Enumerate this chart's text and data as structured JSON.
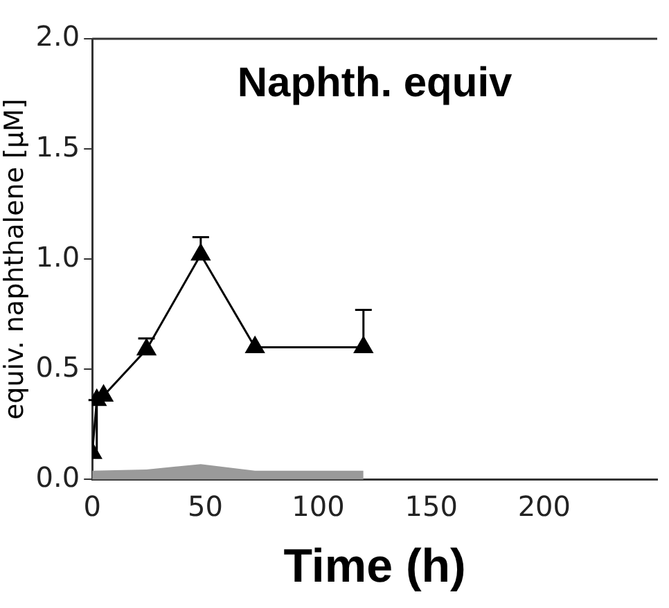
{
  "chart_data": {
    "type": "line",
    "title": "Naphth. equiv",
    "xlabel": "Time (h)",
    "ylabel": "equiv. naphthalene [µM]",
    "xlim": [
      0,
      250
    ],
    "xticks": [
      0,
      50,
      100,
      150,
      200
    ],
    "ylim": [
      0,
      2
    ],
    "yticks": [
      {
        "value": 0,
        "label": "0.0"
      },
      {
        "value": 0.5,
        "label": "0.5"
      },
      {
        "value": 1,
        "label": "1.0"
      },
      {
        "value": 1.5,
        "label": "1.5"
      },
      {
        "value": 2,
        "label": "2.0"
      }
    ],
    "grid": false,
    "line_style": "solid",
    "series": [
      {
        "type": "area",
        "color": "#9a9a9a",
        "x": [
          0,
          24,
          48,
          72,
          120
        ],
        "values": [
          0.04,
          0.045,
          0.07,
          0.04,
          0.04
        ]
      },
      {
        "color": "#000000",
        "marker": "triangle",
        "x": [
          0,
          2,
          5,
          24,
          48,
          72,
          120
        ],
        "values": [
          0.12,
          0.36,
          0.38,
          0.59,
          1.02,
          0.6,
          0.6
        ],
        "errors": [
          null,
          [
            0.12,
            0.36
          ],
          null,
          [
            0.59,
            0.64
          ],
          [
            1.02,
            1.1
          ],
          null,
          [
            0.6,
            0.77
          ]
        ]
      }
    ]
  }
}
